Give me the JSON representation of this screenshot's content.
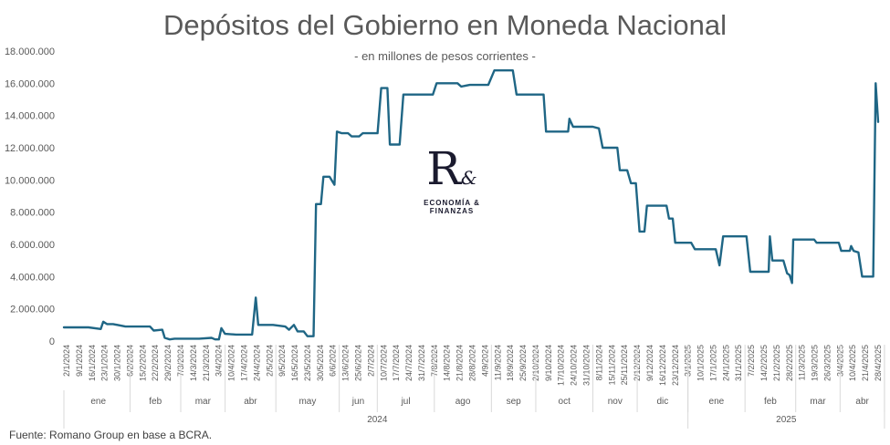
{
  "chart_data": {
    "type": "line",
    "title": "Depósitos del Gobierno en Moneda Nacional",
    "subtitle": "- en millones de pesos corrientes  -",
    "source": "Fuente: Romano Group en base a BCRA.",
    "ylim": [
      0,
      18000000
    ],
    "yticks": [
      "0",
      "2.000.000",
      "4.000.000",
      "6.000.000",
      "8.000.000",
      "10.000.000",
      "12.000.000",
      "14.000.000",
      "16.000.000",
      "18.000.000"
    ],
    "line_color": "#1f6685",
    "xticks": [
      "2/1/2024",
      "9/1/2024",
      "16/1/2024",
      "23/1/2024",
      "30/1/2024",
      "6/2/2024",
      "15/2/2024",
      "22/2/2024",
      "29/2/2024",
      "7/3/2024",
      "14/3/2024",
      "21/3/2024",
      "3/4/2024",
      "10/4/2024",
      "17/4/2024",
      "24/4/2024",
      "2/5/2024",
      "9/5/2024",
      "16/5/2024",
      "23/5/2024",
      "30/5/2024",
      "6/6/2024",
      "13/6/2024",
      "25/6/2024",
      "2/7/2024",
      "10/7/2024",
      "17/7/2024",
      "24/7/2024",
      "31/7/2024",
      "7/8/2024",
      "14/8/2024",
      "21/8/2024",
      "28/8/2024",
      "4/9/2024",
      "11/9/2024",
      "18/9/2024",
      "25/9/2024",
      "2/10/2024",
      "9/10/2024",
      "17/10/2024",
      "24/10/2024",
      "31/10/2024",
      "8/11/2024",
      "15/11/2024",
      "25/11/2024",
      "2/12/2024",
      "9/12/2024",
      "16/12/2024",
      "23/12/2024",
      "3/1/2025",
      "10/1/2025",
      "17/1/2025",
      "24/1/2025",
      "31/1/2025",
      "7/2/2025",
      "14/2/2025",
      "21/2/2025",
      "28/2/2025",
      "11/3/2025",
      "19/3/2025",
      "26/3/2025",
      "3/4/2025",
      "10/4/2025",
      "21/4/2025",
      "28/4/2025"
    ],
    "months": [
      {
        "label": "ene",
        "start": 0,
        "end": 5
      },
      {
        "label": "feb",
        "start": 5,
        "end": 9
      },
      {
        "label": "mar",
        "start": 9,
        "end": 12.5
      },
      {
        "label": "abr",
        "start": 12.5,
        "end": 16.5
      },
      {
        "label": "may",
        "start": 16.5,
        "end": 21.5
      },
      {
        "label": "jun",
        "start": 21.5,
        "end": 24.5
      },
      {
        "label": "jul",
        "start": 24.5,
        "end": 29
      },
      {
        "label": "ago",
        "start": 29,
        "end": 33.5
      },
      {
        "label": "sep",
        "start": 33.5,
        "end": 37
      },
      {
        "label": "oct",
        "start": 37,
        "end": 41.5
      },
      {
        "label": "nov",
        "start": 41.5,
        "end": 45
      },
      {
        "label": "dic",
        "start": 45,
        "end": 49
      },
      {
        "label": "ene",
        "start": 49,
        "end": 53.5
      },
      {
        "label": "feb",
        "start": 53.5,
        "end": 57.5
      },
      {
        "label": "mar",
        "start": 57.5,
        "end": 61
      },
      {
        "label": "abr",
        "start": 61,
        "end": 64.5
      }
    ],
    "years": [
      {
        "label": "2024",
        "start": 0,
        "end": 49
      },
      {
        "label": "2025",
        "start": 49,
        "end": 64.5
      }
    ],
    "series": [
      {
        "values": [
          [
            0,
            850000
          ],
          [
            1,
            850000
          ],
          [
            2,
            850000
          ],
          [
            3,
            750000
          ],
          [
            3.2,
            1200000
          ],
          [
            3.5,
            1050000
          ],
          [
            4,
            1050000
          ],
          [
            5,
            900000
          ],
          [
            6,
            900000
          ],
          [
            7,
            900000
          ],
          [
            7.3,
            650000
          ],
          [
            8,
            700000
          ],
          [
            8.2,
            200000
          ],
          [
            8.6,
            100000
          ],
          [
            9,
            150000
          ],
          [
            10,
            150000
          ],
          [
            11,
            150000
          ],
          [
            12,
            200000
          ],
          [
            12.3,
            100000
          ],
          [
            12.6,
            100000
          ],
          [
            12.8,
            800000
          ],
          [
            13.1,
            450000
          ],
          [
            14,
            400000
          ],
          [
            15,
            400000
          ],
          [
            15.3,
            400000
          ],
          [
            15.6,
            2700000
          ],
          [
            15.8,
            1000000
          ],
          [
            17,
            1000000
          ],
          [
            18,
            900000
          ],
          [
            18.3,
            700000
          ],
          [
            18.7,
            1000000
          ],
          [
            19,
            600000
          ],
          [
            19.5,
            600000
          ],
          [
            19.8,
            300000
          ],
          [
            20.3,
            300000
          ],
          [
            20.5,
            8500000
          ],
          [
            20.9,
            8500000
          ],
          [
            21.1,
            10200000
          ],
          [
            21.6,
            10200000
          ],
          [
            22,
            9700000
          ],
          [
            22.2,
            13000000
          ],
          [
            22.6,
            12900000
          ],
          [
            23.1,
            12900000
          ],
          [
            23.4,
            12700000
          ],
          [
            24,
            12700000
          ],
          [
            24.3,
            12900000
          ],
          [
            25.5,
            12900000
          ],
          [
            25.8,
            15700000
          ],
          [
            26.3,
            15700000
          ],
          [
            26.5,
            12200000
          ],
          [
            27.3,
            12200000
          ],
          [
            27.6,
            15300000
          ],
          [
            29,
            15300000
          ],
          [
            30,
            15300000
          ],
          [
            30.3,
            16000000
          ],
          [
            31,
            16000000
          ],
          [
            32,
            16000000
          ],
          [
            32.3,
            15800000
          ],
          [
            33,
            15900000
          ],
          [
            34.5,
            15900000
          ],
          [
            35,
            16800000
          ],
          [
            36.5,
            16800000
          ],
          [
            36.8,
            15300000
          ],
          [
            38,
            15300000
          ],
          [
            39,
            15300000
          ],
          [
            39.2,
            13000000
          ],
          [
            40.5,
            13000000
          ],
          [
            41,
            13000000
          ],
          [
            41.1,
            13800000
          ],
          [
            41.4,
            13300000
          ],
          [
            42,
            13300000
          ],
          [
            43,
            13300000
          ],
          [
            43.5,
            13200000
          ],
          [
            43.8,
            12000000
          ],
          [
            44.5,
            12000000
          ],
          [
            45,
            12000000
          ],
          [
            45.2,
            10600000
          ],
          [
            45.8,
            10600000
          ],
          [
            46.1,
            9800000
          ],
          [
            46.5,
            9800000
          ],
          [
            46.8,
            6800000
          ],
          [
            47.2,
            6800000
          ],
          [
            47.4,
            8400000
          ],
          [
            48,
            8400000
          ],
          [
            49,
            8400000
          ],
          [
            49.2,
            7600000
          ],
          [
            49.5,
            7600000
          ],
          [
            49.7,
            6100000
          ],
          [
            50,
            6100000
          ],
          [
            51,
            6100000
          ],
          [
            51.3,
            5700000
          ],
          [
            53,
            5700000
          ],
          [
            53.3,
            4700000
          ],
          [
            53.6,
            6500000
          ],
          [
            55,
            6500000
          ],
          [
            55.5,
            6500000
          ],
          [
            55.8,
            4300000
          ],
          [
            57,
            4300000
          ],
          [
            57.3,
            4300000
          ],
          [
            57.4,
            6500000
          ],
          [
            57.6,
            5000000
          ],
          [
            58,
            5000000
          ],
          [
            58.5,
            5000000
          ],
          [
            58.8,
            4200000
          ],
          [
            59,
            4100000
          ],
          [
            59.2,
            3600000
          ],
          [
            59.3,
            6300000
          ],
          [
            60,
            6300000
          ],
          [
            61,
            6300000
          ],
          [
            61.2,
            6100000
          ],
          [
            62,
            6100000
          ],
          [
            63,
            6100000
          ],
          [
            63.2,
            5600000
          ],
          [
            63.6,
            5600000
          ],
          [
            63.9,
            5600000
          ],
          [
            64,
            5900000
          ],
          [
            64.2,
            5600000
          ],
          [
            64.6,
            5500000
          ],
          [
            64.9,
            4000000
          ],
          [
            65.8,
            4000000
          ],
          [
            66,
            16000000
          ],
          [
            66.2,
            13600000
          ]
        ]
      }
    ]
  },
  "logo": {
    "mark": "R",
    "amp": "&",
    "text": "ECONOMÍA & FINANZAS"
  }
}
